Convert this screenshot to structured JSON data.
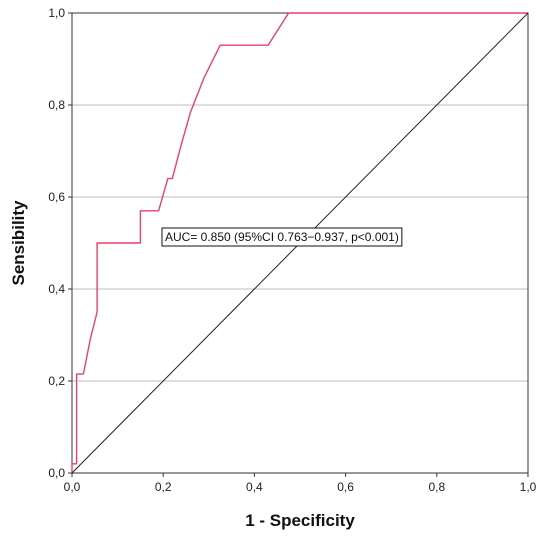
{
  "chart_data": {
    "type": "line",
    "title": "",
    "xlabel": "1 - Specificity",
    "ylabel": "Sensibility",
    "xlim": [
      0,
      1
    ],
    "ylim": [
      0,
      1
    ],
    "x_ticks": [
      "0,0",
      "0,2",
      "0,4",
      "0,6",
      "0,8",
      "1,0"
    ],
    "y_ticks": [
      "0,0",
      "0,2",
      "0,4",
      "0,6",
      "0,8",
      "1,0"
    ],
    "grid": "horizontal",
    "annotation": "AUC= 0.850 (95%CI 0.763−0.937, p<0.001)",
    "series": [
      {
        "color": "#e8416a",
        "x": [
          0.0,
          0.0,
          0.01,
          0.01,
          0.025,
          0.04,
          0.055,
          0.055,
          0.15,
          0.15,
          0.19,
          0.21,
          0.22,
          0.24,
          0.26,
          0.29,
          0.325,
          0.43,
          0.475,
          1.0
        ],
        "y": [
          0.0,
          0.02,
          0.02,
          0.215,
          0.215,
          0.29,
          0.35,
          0.5,
          0.5,
          0.57,
          0.57,
          0.64,
          0.64,
          0.715,
          0.785,
          0.86,
          0.93,
          0.93,
          1.0,
          1.0
        ]
      },
      {
        "color": "#222222",
        "x": [
          0,
          1
        ],
        "y": [
          0,
          1
        ]
      }
    ]
  }
}
